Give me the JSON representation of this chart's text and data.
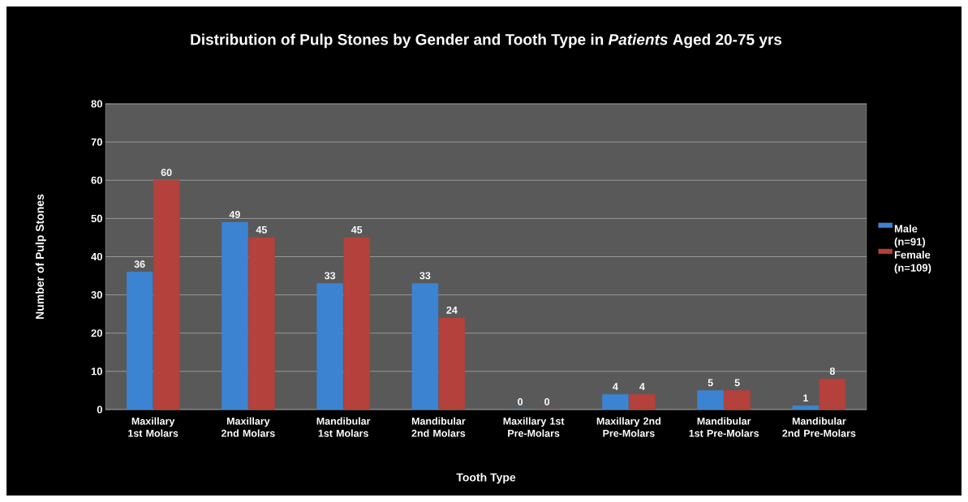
{
  "chart_data": {
    "type": "bar",
    "title": "Distribution of Pulp Stones by Gender and Tooth Type in *Patients* Aged 20-75 yrs",
    "xlabel": "Tooth Type",
    "ylabel": "Number of Pulp Stones",
    "categories": [
      "Maxillary 1st Molars",
      "Maxillary 2nd Molars",
      "Mandibular 1st Molars",
      "Mandibular 2nd Molars",
      "Maxillary 1st Pre-Molars",
      "Maxillary 2nd Pre-Molars",
      "Mandibular 1st Pre-Molars",
      "Mandibular 2nd Pre-Molars"
    ],
    "series": [
      {
        "name": "Male (n=91)",
        "color": "#3c84d2",
        "values": [
          36,
          49,
          33,
          33,
          0,
          4,
          5,
          1
        ]
      },
      {
        "name": "Female (n=109)",
        "color": "#b4413b",
        "values": [
          60,
          45,
          45,
          24,
          0,
          4,
          5,
          8
        ]
      }
    ],
    "ylim": [
      0,
      80
    ],
    "yticks": [
      0,
      10,
      20,
      30,
      40,
      50,
      60,
      70,
      80
    ],
    "grid": "y",
    "legend": "right",
    "data_labels": true
  }
}
